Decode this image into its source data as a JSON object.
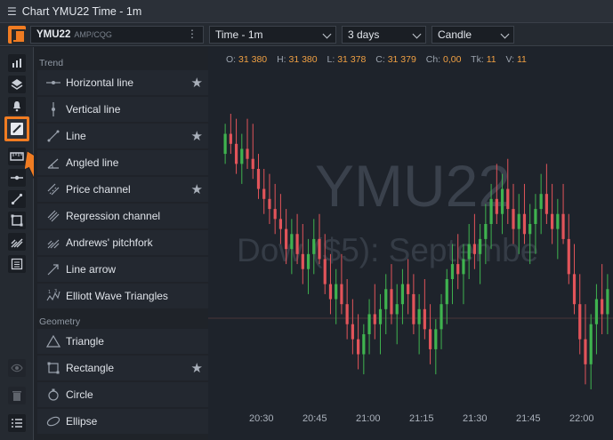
{
  "window": {
    "title": "Chart YMU22 Time - 1m",
    "menu_icon": "hamburger-icon"
  },
  "toolbar": {
    "symbol": "YMU22",
    "source": "AMP/CQG",
    "interval": "Time - 1m",
    "range": "3 days",
    "style": "Candle"
  },
  "ohlc": {
    "o_label": "O:",
    "o": "31 380",
    "h_label": "H:",
    "h": "31 380",
    "l_label": "L:",
    "l": "31 378",
    "c_label": "C:",
    "c": "31 379",
    "ch_label": "Ch:",
    "ch": "0,00",
    "tk_label": "Tk:",
    "tk": "11",
    "v_label": "V:",
    "v": "11"
  },
  "watermark": {
    "symbol": "YMU22",
    "name": "Dow ($5): Septembe"
  },
  "left_tools": [
    "bar-chart-icon",
    "layers-icon",
    "bell-icon",
    "drawing-tools-icon",
    "ruler-icon",
    "horizontal-line-tool-icon",
    "trendline-tool-icon",
    "rectangle-tool-icon",
    "pitchfork-tool-icon",
    "object-list-icon",
    "eye-icon",
    "trash-icon",
    "list-icon"
  ],
  "drawing_panel": {
    "trend_label": "Trend",
    "trend_items": [
      {
        "label": "Horizontal line",
        "icon": "horizontal-line-icon",
        "starred": true
      },
      {
        "label": "Vertical line",
        "icon": "vertical-line-icon",
        "starred": false
      },
      {
        "label": "Line",
        "icon": "line-icon",
        "starred": true
      },
      {
        "label": "Angled line",
        "icon": "angled-line-icon",
        "starred": false
      },
      {
        "label": "Price channel",
        "icon": "price-channel-icon",
        "starred": true
      },
      {
        "label": "Regression channel",
        "icon": "regression-channel-icon",
        "starred": false
      },
      {
        "label": "Andrews' pitchfork",
        "icon": "pitchfork-icon",
        "starred": false
      },
      {
        "label": "Line arrow",
        "icon": "line-arrow-icon",
        "starred": false
      },
      {
        "label": "Elliott Wave Triangles",
        "icon": "elliott-wave-icon",
        "starred": false
      }
    ],
    "geometry_label": "Geometry",
    "geometry_items": [
      {
        "label": "Triangle",
        "icon": "triangle-icon",
        "starred": false
      },
      {
        "label": "Rectangle",
        "icon": "rectangle-icon",
        "starred": true
      },
      {
        "label": "Circle",
        "icon": "circle-icon",
        "starred": false
      },
      {
        "label": "Ellipse",
        "icon": "ellipse-icon",
        "starred": false
      }
    ]
  },
  "time_axis": [
    "20:30",
    "20:45",
    "21:00",
    "21:15",
    "21:30",
    "21:45",
    "22:00"
  ],
  "colors": {
    "up": "#3fb34f",
    "down": "#e2545a",
    "accent": "#f07c22"
  },
  "chart_data": {
    "type": "candlestick",
    "x_ticks": [
      "20:30",
      "20:45",
      "21:00",
      "21:15",
      "21:30",
      "21:45",
      "22:00"
    ],
    "last": {
      "o": 31380,
      "h": 31380,
      "l": 31378,
      "c": 31379
    },
    "candles": [
      [
        31392,
        31398,
        31390,
        31396
      ],
      [
        31396,
        31400,
        31392,
        31394
      ],
      [
        31394,
        31399,
        31388,
        31390
      ],
      [
        31390,
        31396,
        31386,
        31393
      ],
      [
        31393,
        31399,
        31389,
        31391
      ],
      [
        31391,
        31398,
        31387,
        31389
      ],
      [
        31389,
        31392,
        31383,
        31385
      ],
      [
        31385,
        31389,
        31380,
        31383
      ],
      [
        31383,
        31388,
        31378,
        31381
      ],
      [
        31381,
        31386,
        31376,
        31379
      ],
      [
        31379,
        31384,
        31374,
        31377
      ],
      [
        31377,
        31381,
        31370,
        31373
      ],
      [
        31373,
        31379,
        31368,
        31376
      ],
      [
        31376,
        31380,
        31370,
        31372
      ],
      [
        31372,
        31378,
        31366,
        31369
      ],
      [
        31369,
        31375,
        31364,
        31372
      ],
      [
        31372,
        31379,
        31368,
        31375
      ],
      [
        31375,
        31380,
        31370,
        31371
      ],
      [
        31371,
        31376,
        31364,
        31366
      ],
      [
        31366,
        31372,
        31360,
        31363
      ],
      [
        31363,
        31369,
        31358,
        31366
      ],
      [
        31366,
        31372,
        31360,
        31362
      ],
      [
        31362,
        31367,
        31355,
        31358
      ],
      [
        31358,
        31363,
        31352,
        31355
      ],
      [
        31355,
        31360,
        31349,
        31352
      ],
      [
        31352,
        31358,
        31348,
        31356
      ],
      [
        31356,
        31363,
        31352,
        31360
      ],
      [
        31360,
        31366,
        31355,
        31358
      ],
      [
        31358,
        31364,
        31352,
        31361
      ],
      [
        31361,
        31368,
        31356,
        31365
      ],
      [
        31365,
        31370,
        31358,
        31360
      ],
      [
        31360,
        31366,
        31354,
        31362
      ],
      [
        31362,
        31369,
        31358,
        31366
      ],
      [
        31366,
        31371,
        31360,
        31364
      ],
      [
        31364,
        31368,
        31356,
        31358
      ],
      [
        31358,
        31364,
        31352,
        31361
      ],
      [
        31361,
        31367,
        31355,
        31357
      ],
      [
        31357,
        31362,
        31350,
        31353
      ],
      [
        31353,
        31359,
        31348,
        31357
      ],
      [
        31357,
        31364,
        31353,
        31362
      ],
      [
        31362,
        31369,
        31358,
        31367
      ],
      [
        31367,
        31374,
        31362,
        31370
      ],
      [
        31370,
        31376,
        31365,
        31368
      ],
      [
        31368,
        31374,
        31362,
        31371
      ],
      [
        31371,
        31378,
        31367,
        31374
      ],
      [
        31374,
        31380,
        31369,
        31372
      ],
      [
        31372,
        31378,
        31366,
        31375
      ],
      [
        31375,
        31382,
        31370,
        31378
      ],
      [
        31378,
        31386,
        31373,
        31383
      ],
      [
        31383,
        31390,
        31378,
        31380
      ],
      [
        31380,
        31388,
        31376,
        31385
      ],
      [
        31385,
        31391,
        31378,
        31381
      ],
      [
        31381,
        31386,
        31374,
        31377
      ],
      [
        31377,
        31384,
        31372,
        31380
      ],
      [
        31380,
        31386,
        31374,
        31376
      ],
      [
        31376,
        31382,
        31370,
        31378
      ],
      [
        31378,
        31384,
        31372,
        31381
      ],
      [
        31381,
        31388,
        31376,
        31384
      ],
      [
        31384,
        31390,
        31378,
        31380
      ],
      [
        31380,
        31386,
        31374,
        31377
      ],
      [
        31377,
        31383,
        31371,
        31380
      ],
      [
        31380,
        31386,
        31374,
        31375
      ],
      [
        31375,
        31380,
        31366,
        31368
      ],
      [
        31368,
        31374,
        31360,
        31362
      ],
      [
        31362,
        31368,
        31352,
        31355
      ],
      [
        31355,
        31362,
        31346,
        31350
      ],
      [
        31350,
        31360,
        31345,
        31358
      ],
      [
        31358,
        31366,
        31352,
        31363
      ],
      [
        31363,
        31370,
        31356,
        31360
      ],
      [
        31360,
        31368,
        31356,
        31365
      ]
    ]
  }
}
